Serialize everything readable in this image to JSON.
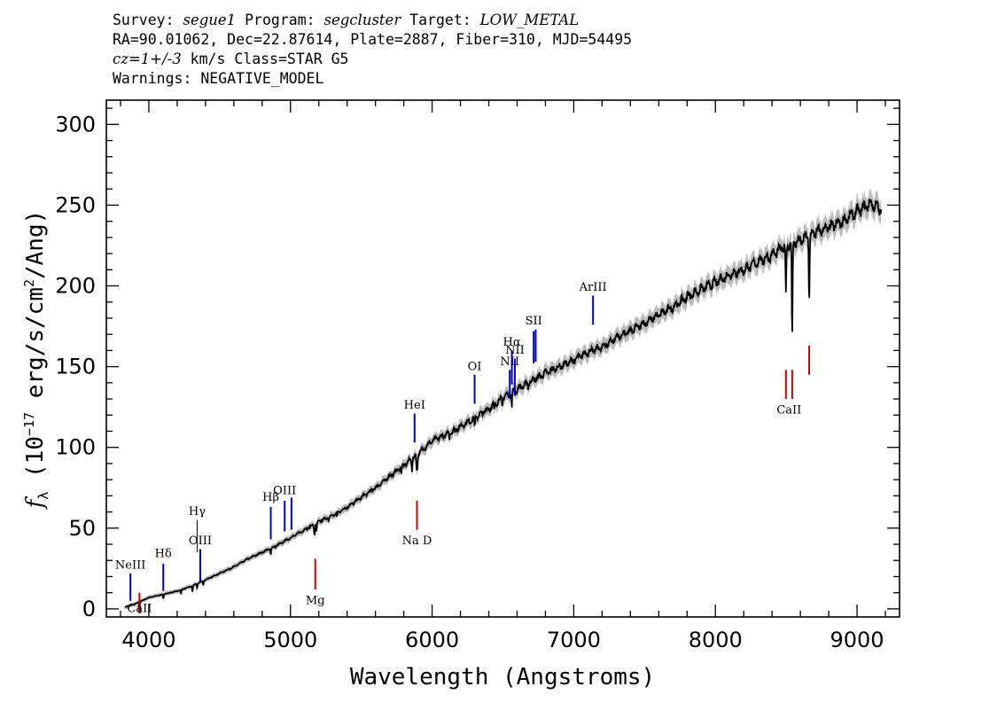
{
  "header": {
    "survey_label": "Survey: ",
    "survey": "segue1",
    "program_label": " Program: ",
    "program": "segcluster",
    "target_label": " Target: ",
    "target": "LOW_METAL",
    "line2": "RA=90.01062, Dec=22.87614, Plate=2887, Fiber=310, MJD=54495",
    "redshift": "cz=1+/-3",
    "line3_rest": " km/s Class=STAR G5",
    "line4": "Warnings: NEGATIVE_MODEL"
  },
  "chart_data": {
    "type": "line",
    "xlabel": "Wavelength (Angstroms)",
    "ylabel_parts": [
      "f",
      "λ",
      " (10",
      "−17",
      " erg/s/cm",
      "2",
      "/Ang)"
    ],
    "xlim": [
      3700,
      9300
    ],
    "ylim": [
      -5,
      315
    ],
    "x_ticks": [
      4000,
      5000,
      6000,
      7000,
      8000,
      9000
    ],
    "x_tick_labels": [
      "4000",
      "5000",
      "6000",
      "7000",
      "8000",
      "9000"
    ],
    "y_ticks": [
      0,
      50,
      100,
      150,
      200,
      250,
      300
    ],
    "y_tick_labels": [
      "0",
      "50",
      "100",
      "150",
      "200",
      "250",
      "300"
    ],
    "x_minor_step": 200,
    "y_minor_step": 10,
    "series": [
      {
        "color": "#000000",
        "error_band_color": "#bbbbbb",
        "points": [
          [
            3830,
            1
          ],
          [
            3900,
            3
          ],
          [
            4000,
            7
          ],
          [
            4100,
            9
          ],
          [
            4200,
            11
          ],
          [
            4300,
            14
          ],
          [
            4400,
            18
          ],
          [
            4500,
            22
          ],
          [
            4600,
            26
          ],
          [
            4700,
            31
          ],
          [
            4800,
            35
          ],
          [
            4900,
            39
          ],
          [
            5000,
            44
          ],
          [
            5100,
            49
          ],
          [
            5200,
            54
          ],
          [
            5300,
            58
          ],
          [
            5400,
            63
          ],
          [
            5500,
            69
          ],
          [
            5600,
            75
          ],
          [
            5700,
            82
          ],
          [
            5800,
            89
          ],
          [
            5900,
            96
          ],
          [
            6000,
            104
          ],
          [
            6100,
            108
          ],
          [
            6200,
            113
          ],
          [
            6300,
            118
          ],
          [
            6400,
            124
          ],
          [
            6500,
            131
          ],
          [
            6600,
            136
          ],
          [
            6700,
            141
          ],
          [
            6800,
            146
          ],
          [
            6900,
            150
          ],
          [
            7000,
            154
          ],
          [
            7100,
            159
          ],
          [
            7200,
            162
          ],
          [
            7300,
            168
          ],
          [
            7400,
            172
          ],
          [
            7500,
            177
          ],
          [
            7600,
            182
          ],
          [
            7700,
            187
          ],
          [
            7800,
            193
          ],
          [
            7900,
            198
          ],
          [
            8000,
            202
          ],
          [
            8100,
            207
          ],
          [
            8200,
            210
          ],
          [
            8300,
            215
          ],
          [
            8400,
            219
          ],
          [
            8500,
            225
          ],
          [
            8600,
            228
          ],
          [
            8700,
            233
          ],
          [
            8800,
            236
          ],
          [
            8900,
            240
          ],
          [
            9000,
            246
          ],
          [
            9100,
            251
          ],
          [
            9170,
            247
          ]
        ],
        "absorption": [
          [
            3934,
            -8
          ],
          [
            4102,
            -3
          ],
          [
            4227,
            -3
          ],
          [
            4308,
            -4
          ],
          [
            4341,
            -3
          ],
          [
            4384,
            -3
          ],
          [
            4861,
            -4
          ],
          [
            5167,
            -5
          ],
          [
            5172,
            -6
          ],
          [
            5184,
            -6
          ],
          [
            5270,
            -3
          ],
          [
            5328,
            -3
          ],
          [
            5783,
            -4
          ],
          [
            5858,
            -8
          ],
          [
            5890,
            -10
          ],
          [
            5896,
            -10
          ],
          [
            6122,
            -4
          ],
          [
            6162,
            -3
          ],
          [
            6300,
            -6
          ],
          [
            6438,
            -5
          ],
          [
            6495,
            -6
          ],
          [
            6563,
            -10
          ],
          [
            6678,
            -3
          ],
          [
            8498,
            -30
          ],
          [
            8542,
            -60
          ],
          [
            8662,
            -40
          ]
        ]
      }
    ],
    "lines": [
      {
        "label": "NeIII",
        "wave": 3870,
        "color": "#0000cc",
        "y_bottom": 5,
        "y_top": 22,
        "label_y": 25
      },
      {
        "label": "Hδ",
        "wave": 4102,
        "color": "#0000cc",
        "y_bottom": 11,
        "y_top": 28,
        "label_y": 32
      },
      {
        "label": "Hγ",
        "wave": 4341,
        "color": "#000000",
        "y_bottom": 35,
        "y_top": 55,
        "label_y": 58
      },
      {
        "label": "OIII",
        "wave": 4363,
        "color": "#0000cc",
        "y_bottom": 17,
        "y_top": 37,
        "label_y": 40
      },
      {
        "label": "Hβ",
        "wave": 4861,
        "color": "#0000cc",
        "y_bottom": 43,
        "y_top": 63,
        "label_y": 67
      },
      {
        "label": "OIII",
        "wave": 4959,
        "color": "#0000cc",
        "y_bottom": 48,
        "y_top": 67,
        "label_y": 71
      },
      {
        "label": "OIII",
        "wave": 5007,
        "color": "#0000cc",
        "y_bottom": 49,
        "y_top": 69,
        "label_y": 71
      },
      {
        "label": "HeI",
        "wave": 5876,
        "color": "#0000cc",
        "y_bottom": 103,
        "y_top": 121,
        "label_y": 124
      },
      {
        "label": "OI",
        "wave": 6300,
        "color": "#0000cc",
        "y_bottom": 127,
        "y_top": 145,
        "label_y": 148
      },
      {
        "label": "NII",
        "wave": 6548,
        "color": "#0000cc",
        "y_bottom": 130,
        "y_top": 148,
        "label_y": 151
      },
      {
        "label": "Hα",
        "wave": 6563,
        "color": "#0000cc",
        "y_bottom": 139,
        "y_top": 160,
        "label_y": 163
      },
      {
        "label": "NII",
        "wave": 6584,
        "color": "#0000cc",
        "y_bottom": 132,
        "y_top": 155,
        "label_y": 158
      },
      {
        "label": "SII",
        "wave": 6717,
        "color": "#0000cc",
        "y_bottom": 152,
        "y_top": 172,
        "label_y": 176
      },
      {
        "label": "SII",
        "wave": 6731,
        "color": "#0000cc",
        "y_bottom": 153,
        "y_top": 173,
        "label_y": 176
      },
      {
        "label": "ArIII",
        "wave": 7136,
        "color": "#0000cc",
        "y_bottom": 176,
        "y_top": 194,
        "label_y": 197
      },
      {
        "label": "CaII",
        "wave": 3934,
        "color": "#cc0000",
        "y_bottom": -2,
        "y_top": 10,
        "label_y": -2
      },
      {
        "label": "Mg",
        "wave": 5175,
        "color": "#cc0000",
        "y_bottom": 12,
        "y_top": 31,
        "label_y": 3
      },
      {
        "label": "Na D",
        "wave": 5893,
        "color": "#cc0000",
        "y_bottom": 49,
        "y_top": 67,
        "label_y": 40
      },
      {
        "label": "CaII",
        "wave": 8498,
        "color": "#cc0000",
        "y_bottom": 130,
        "y_top": 148,
        "label_y": 121
      },
      {
        "label": "CaII",
        "wave": 8542,
        "color": "#cc0000",
        "y_bottom": 130,
        "y_top": 148,
        "label_y": 121
      },
      {
        "label": "CaII",
        "wave": 8662,
        "color": "#cc0000",
        "y_bottom": 145,
        "y_top": 163,
        "label_y": 121
      }
    ]
  }
}
